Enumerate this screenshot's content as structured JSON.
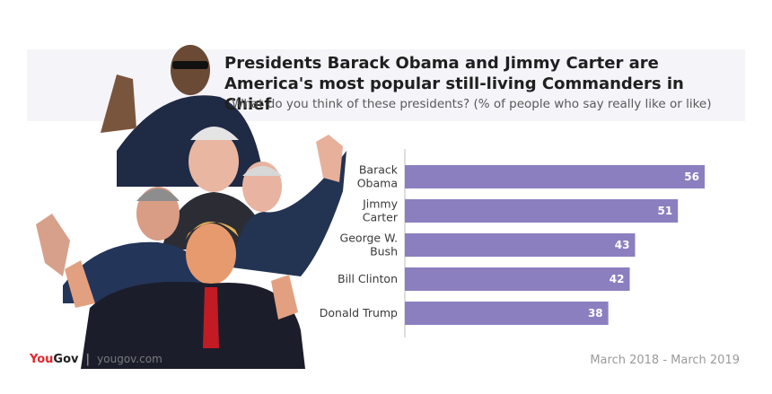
{
  "header": {
    "title": "Presidents Barack Obama and Jimmy Carter are America's most popular still-living Commanders in Chief",
    "subtitle": "What do you think of these presidents? (% of people who say really like or like)"
  },
  "footer": {
    "brand_you": "You",
    "brand_gov": "Gov",
    "separator": "|",
    "url": "yougov.com",
    "date_range": "March 2018 - March 2019"
  },
  "colors": {
    "bar": "#8b7fc0",
    "axis": "#bdbdbd",
    "band": "#f4f4f9"
  },
  "chart_data": {
    "type": "bar",
    "orientation": "horizontal",
    "categories": [
      [
        "Barack",
        "Obama"
      ],
      [
        "Jimmy",
        "Carter"
      ],
      [
        "George W.",
        "Bush"
      ],
      [
        "Bill Clinton"
      ],
      [
        "Donald Trump"
      ]
    ],
    "values": [
      56,
      51,
      43,
      42,
      38
    ],
    "xlim": [
      0,
      60
    ],
    "grid": false,
    "legend": "none"
  }
}
